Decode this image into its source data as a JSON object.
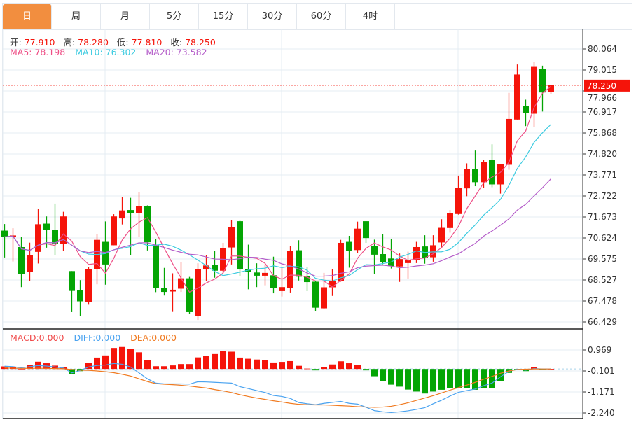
{
  "tabs": [
    {
      "label": "日",
      "active": true
    },
    {
      "label": "周"
    },
    {
      "label": "月"
    },
    {
      "label": "5分"
    },
    {
      "label": "15分"
    },
    {
      "label": "30分"
    },
    {
      "label": "60分"
    },
    {
      "label": "4时"
    }
  ],
  "ohlc_legend": {
    "open_label": "开:",
    "open": "77.910",
    "high_label": "高:",
    "high": "78.280",
    "low_label": "低:",
    "low": "77.810",
    "close_label": "收:",
    "close": "78.250"
  },
  "ma_legend": {
    "ma5": "MA5: 78.198",
    "ma10": "MA10: 76.302",
    "ma20": "MA20: 73.582"
  },
  "macd_legend": {
    "macd": "MACD:0.000",
    "diff": "DIFF:0.000",
    "dea": "DEA:0.000"
  },
  "current_price": "78.250",
  "colors": {
    "up": "#f5140a",
    "down": "#04a504",
    "ma5": "#ee4f86",
    "ma10": "#3ccbe0",
    "ma20": "#b45cc9",
    "diff": "#4aa3f0",
    "dea": "#f07a20",
    "tab_active": "#f28e3f"
  },
  "chart_data": [
    {
      "type": "candlestick",
      "y_ticks": [
        "80.064",
        "79.015",
        "77.966",
        "76.917",
        "75.868",
        "74.820",
        "73.771",
        "72.722",
        "71.673",
        "70.624",
        "69.575",
        "68.527",
        "67.478",
        "66.429"
      ],
      "ylim": [
        66.429,
        80.064
      ],
      "grid": true,
      "ma_periods": [
        5,
        10,
        20
      ],
      "ohlc": [
        [
          70.99,
          71.32,
          69.65,
          70.68
        ],
        [
          70.66,
          71.11,
          69.45,
          70.75
        ],
        [
          70.17,
          70.68,
          68.17,
          68.81
        ],
        [
          68.92,
          70.39,
          68.46,
          69.78
        ],
        [
          69.93,
          72.09,
          69.35,
          71.31
        ],
        [
          71.34,
          71.7,
          70.14,
          71.02
        ],
        [
          71.02,
          72.34,
          69.78,
          70.31
        ],
        [
          70.31,
          71.93,
          69.97,
          71.7
        ],
        [
          68.97,
          68.97,
          66.92,
          67.98
        ],
        [
          68.02,
          68.52,
          66.72,
          67.46
        ],
        [
          67.44,
          69.17,
          67.29,
          69.07
        ],
        [
          69.07,
          70.81,
          68.31,
          70.53
        ],
        [
          70.43,
          71.45,
          68.29,
          69.3
        ],
        [
          70.26,
          71.81,
          70.26,
          71.7
        ],
        [
          71.6,
          72.67,
          71.3,
          72.0
        ],
        [
          72.02,
          72.63,
          69.75,
          71.88
        ],
        [
          71.85,
          72.9,
          70.67,
          72.2
        ],
        [
          72.22,
          72.25,
          70.0,
          70.41
        ],
        [
          70.26,
          70.56,
          67.92,
          68.11
        ],
        [
          68.14,
          69.13,
          67.75,
          67.93
        ],
        [
          67.95,
          68.86,
          66.93,
          68.04
        ],
        [
          68.09,
          69.4,
          67.93,
          68.61
        ],
        [
          68.61,
          68.68,
          66.82,
          66.92
        ],
        [
          66.74,
          69.36,
          66.53,
          69.08
        ],
        [
          69.05,
          69.75,
          68.49,
          69.25
        ],
        [
          69.27,
          69.96,
          68.64,
          68.99
        ],
        [
          68.99,
          70.38,
          68.87,
          70.13
        ],
        [
          70.15,
          71.52,
          69.3,
          71.18
        ],
        [
          71.46,
          71.49,
          68.73,
          69.05
        ],
        [
          69.08,
          70.29,
          68.06,
          68.93
        ],
        [
          68.9,
          69.36,
          68.17,
          68.74
        ],
        [
          68.74,
          69.3,
          68.26,
          68.88
        ],
        [
          68.76,
          69.69,
          67.86,
          68.11
        ],
        [
          67.97,
          69.12,
          67.7,
          68.17
        ],
        [
          68.13,
          70.24,
          67.9,
          69.96
        ],
        [
          70.01,
          70.51,
          68.5,
          68.69
        ],
        [
          68.73,
          69.16,
          67.97,
          68.42
        ],
        [
          68.44,
          68.49,
          66.98,
          67.14
        ],
        [
          67.11,
          68.88,
          67.06,
          68.16
        ],
        [
          68.16,
          69.06,
          67.73,
          68.46
        ],
        [
          68.46,
          70.53,
          68.44,
          70.38
        ],
        [
          70.43,
          70.73,
          69.14,
          69.98
        ],
        [
          70.02,
          71.44,
          69.86,
          71.09
        ],
        [
          71.46,
          71.46,
          70.38,
          70.62
        ],
        [
          70.22,
          70.54,
          68.81,
          69.79
        ],
        [
          69.82,
          70.8,
          69.31,
          69.41
        ],
        [
          69.6,
          70.59,
          69.1,
          69.22
        ],
        [
          69.2,
          69.85,
          68.43,
          69.57
        ],
        [
          69.37,
          69.94,
          68.6,
          69.54
        ],
        [
          69.52,
          70.43,
          69.37,
          70.17
        ],
        [
          70.2,
          70.76,
          69.34,
          69.63
        ],
        [
          69.66,
          70.76,
          69.44,
          70.26
        ],
        [
          70.4,
          71.56,
          70.15,
          71.13
        ],
        [
          71.12,
          72.02,
          70.89,
          71.87
        ],
        [
          71.82,
          73.74,
          71.79,
          73.12
        ],
        [
          73.1,
          74.35,
          72.71,
          74.07
        ],
        [
          74.05,
          74.99,
          73.21,
          73.41
        ],
        [
          73.41,
          74.54,
          73.12,
          74.42
        ],
        [
          74.52,
          75.3,
          73.16,
          73.3
        ],
        [
          73.3,
          74.3,
          72.84,
          74.3
        ],
        [
          74.28,
          77.87,
          74.03,
          76.57
        ],
        [
          76.54,
          79.29,
          76.54,
          78.79
        ],
        [
          77.23,
          77.53,
          76.21,
          76.87
        ],
        [
          76.83,
          79.4,
          76.17,
          79.17
        ],
        [
          79.05,
          79.23,
          76.94,
          77.89
        ],
        [
          77.91,
          78.28,
          77.81,
          78.25
        ]
      ]
    },
    {
      "type": "macd",
      "y_ticks": [
        "0.969",
        "-0.101",
        "-1.171",
        "-2.240"
      ],
      "macd": [
        0.13,
        0.11,
        0.01,
        0.21,
        0.37,
        0.29,
        0.17,
        0.11,
        -0.26,
        -0.11,
        0.3,
        0.58,
        0.69,
        1.07,
        1.12,
        1.02,
        0.85,
        0.44,
        0.14,
        0.14,
        0.18,
        0.25,
        0.25,
        0.59,
        0.68,
        0.76,
        0.9,
        0.88,
        0.58,
        0.52,
        0.48,
        0.44,
        0.33,
        0.36,
        0.4,
        0.16,
        0.02,
        -0.07,
        0.11,
        0.23,
        0.39,
        0.29,
        0.21,
        -0.07,
        -0.37,
        -0.61,
        -0.8,
        -0.9,
        -1.05,
        -1.15,
        -1.25,
        -1.15,
        -1.06,
        -0.96,
        -0.96,
        -0.97,
        -1.06,
        -0.99,
        -0.96,
        -0.62,
        -0.2,
        -0.01,
        -0.11,
        0.11,
        -0.04,
        0.0
      ],
      "diff": [
        0.14,
        0.12,
        0.06,
        0.12,
        0.17,
        0.15,
        0.1,
        0.05,
        -0.2,
        -0.08,
        0.1,
        0.18,
        0.2,
        0.28,
        0.24,
        0.1,
        -0.2,
        -0.5,
        -0.72,
        -0.76,
        -0.76,
        -0.76,
        -0.77,
        -0.65,
        -0.66,
        -0.68,
        -0.7,
        -0.72,
        -0.9,
        -1.0,
        -1.1,
        -1.2,
        -1.35,
        -1.4,
        -1.5,
        -1.71,
        -1.77,
        -1.82,
        -1.75,
        -1.7,
        -1.65,
        -1.75,
        -1.79,
        -1.95,
        -2.12,
        -2.18,
        -2.22,
        -2.18,
        -2.13,
        -2.06,
        -1.97,
        -1.77,
        -1.59,
        -1.38,
        -1.19,
        -1.1,
        -1.02,
        -0.85,
        -0.72,
        -0.4,
        -0.12,
        -0.01,
        -0.06,
        0.02,
        0.0,
        0.0
      ],
      "dea": [
        0.05,
        0.04,
        0.03,
        0.03,
        0.04,
        0.03,
        0.02,
        0.01,
        -0.03,
        -0.06,
        -0.07,
        -0.1,
        -0.14,
        -0.19,
        -0.27,
        -0.36,
        -0.5,
        -0.64,
        -0.75,
        -0.78,
        -0.8,
        -0.83,
        -0.87,
        -0.92,
        -0.97,
        -1.05,
        -1.12,
        -1.2,
        -1.31,
        -1.4,
        -1.48,
        -1.55,
        -1.62,
        -1.68,
        -1.75,
        -1.8,
        -1.82,
        -1.83,
        -1.83,
        -1.85,
        -1.87,
        -1.89,
        -1.92,
        -1.94,
        -1.95,
        -1.94,
        -1.9,
        -1.82,
        -1.72,
        -1.6,
        -1.48,
        -1.36,
        -1.22,
        -1.08,
        -0.95,
        -0.82,
        -0.68,
        -0.52,
        -0.38,
        -0.22,
        -0.1,
        -0.03,
        -0.01,
        0.0,
        0.0,
        0.0
      ]
    }
  ]
}
